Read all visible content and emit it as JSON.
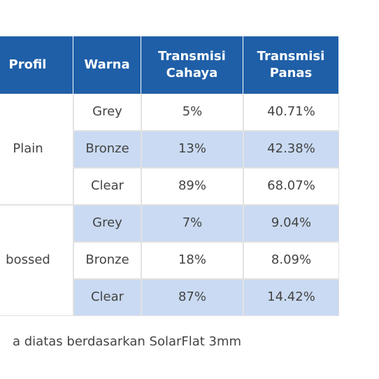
{
  "table": {
    "headers": [
      "Profil",
      "Warna",
      "Transmisi Cahaya",
      "Transmisi Panas"
    ],
    "groups": [
      {
        "profil": "Plain",
        "rows": [
          [
            "Grey",
            "5%",
            "40.71%"
          ],
          [
            "Bronze",
            "13%",
            "42.38%"
          ],
          [
            "Clear",
            "89%",
            "68.07%"
          ]
        ]
      },
      {
        "profil": "bossed",
        "rows": [
          [
            "Grey",
            "7%",
            "9.04%"
          ],
          [
            "Bronze",
            "18%",
            "8.09%"
          ],
          [
            "Clear",
            "87%",
            "14.42%"
          ]
        ]
      }
    ]
  },
  "footnote": "a diatas berdasarkan SolarFlat 3mm"
}
